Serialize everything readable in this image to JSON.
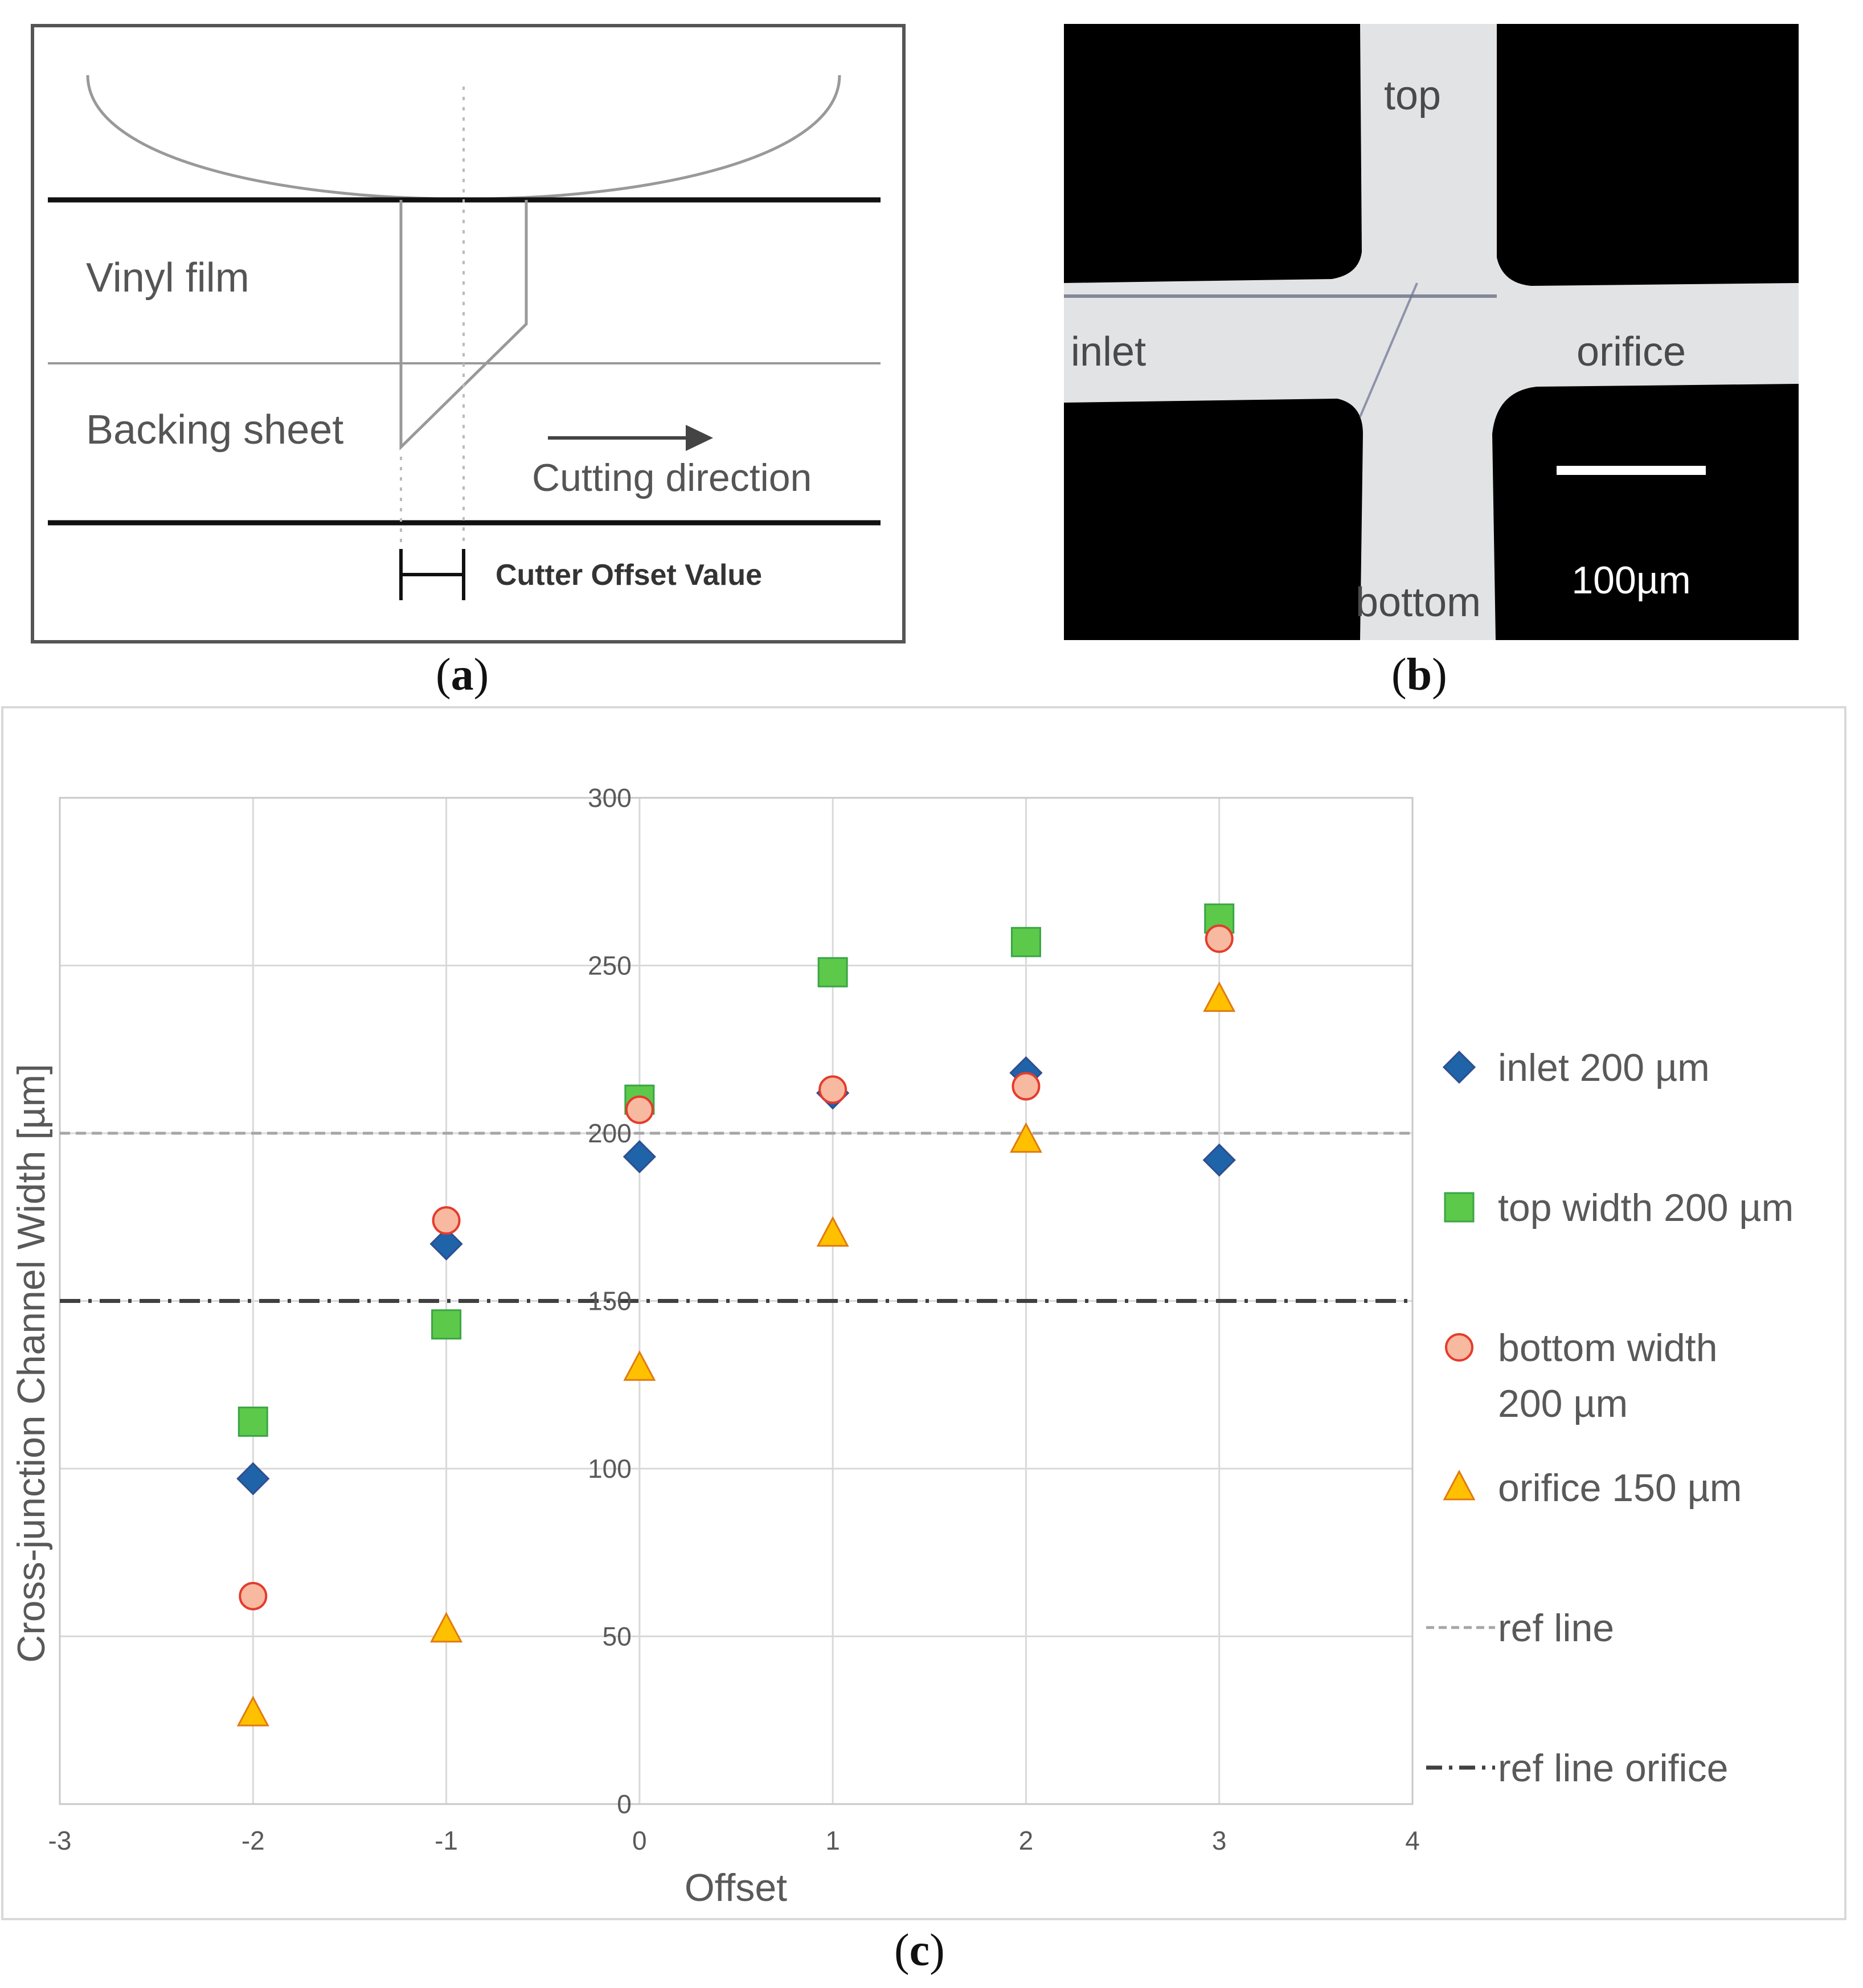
{
  "panel_a": {
    "label": "a",
    "vinyl_film": "Vinyl film",
    "backing_sheet": "Backing sheet",
    "cutting_direction": "Cutting direction",
    "cutter_offset": "Cutter Offset Value"
  },
  "panel_b": {
    "label": "b",
    "top": "top",
    "inlet": "inlet",
    "orifice": "orifice",
    "bottom": "bottom",
    "scale_bar": "100µm"
  },
  "panel_c": {
    "label": "c"
  },
  "chart_data": {
    "type": "scatter",
    "title": "",
    "xlabel": "Offset",
    "ylabel": "Cross-junction Channel Width [µm]",
    "xlim": [
      -3,
      4
    ],
    "ylim": [
      0,
      300
    ],
    "x_ticks": [
      -3,
      -2,
      -1,
      0,
      1,
      2,
      3,
      4
    ],
    "y_ticks": [
      0,
      50,
      100,
      150,
      200,
      250,
      300
    ],
    "grid": true,
    "legend_position": "right",
    "series": [
      {
        "name": "inlet 200 µm",
        "marker": "diamond",
        "color": "#1f63a8",
        "x": [
          -2,
          -1,
          0,
          1,
          2,
          3
        ],
        "y": [
          97,
          167,
          193,
          212,
          218,
          192
        ]
      },
      {
        "name": "top width 200 µm",
        "marker": "square",
        "color": "#5cc94a",
        "x": [
          -2,
          -1,
          0,
          1,
          2,
          3
        ],
        "y": [
          114,
          143,
          210,
          248,
          257,
          264
        ]
      },
      {
        "name": "bottom width 200 µm",
        "marker": "circle",
        "color": "#f7b9a0",
        "x": [
          -2,
          -1,
          0,
          1,
          2,
          3
        ],
        "y": [
          62,
          174,
          207,
          213,
          214,
          258
        ]
      },
      {
        "name": "orifice 150 µm",
        "marker": "triangle",
        "color": "#ffc000",
        "x": [
          -2,
          -1,
          0,
          1,
          2,
          3
        ],
        "y": [
          27,
          52,
          130,
          170,
          198,
          240
        ]
      }
    ],
    "reference_lines": [
      {
        "name": "ref line",
        "y": 200,
        "style": "dashed",
        "color": "#a6a6a6"
      },
      {
        "name": "ref line orifice",
        "y": 150,
        "style": "dash-dot",
        "color": "#404040"
      }
    ],
    "legend_labels": [
      [
        "inlet 200 µm"
      ],
      [
        "top width 200 µm"
      ],
      [
        "bottom width",
        "200 µm"
      ],
      [
        "orifice 150 µm"
      ],
      [
        "ref line"
      ],
      [
        "ref line orifice"
      ]
    ]
  }
}
